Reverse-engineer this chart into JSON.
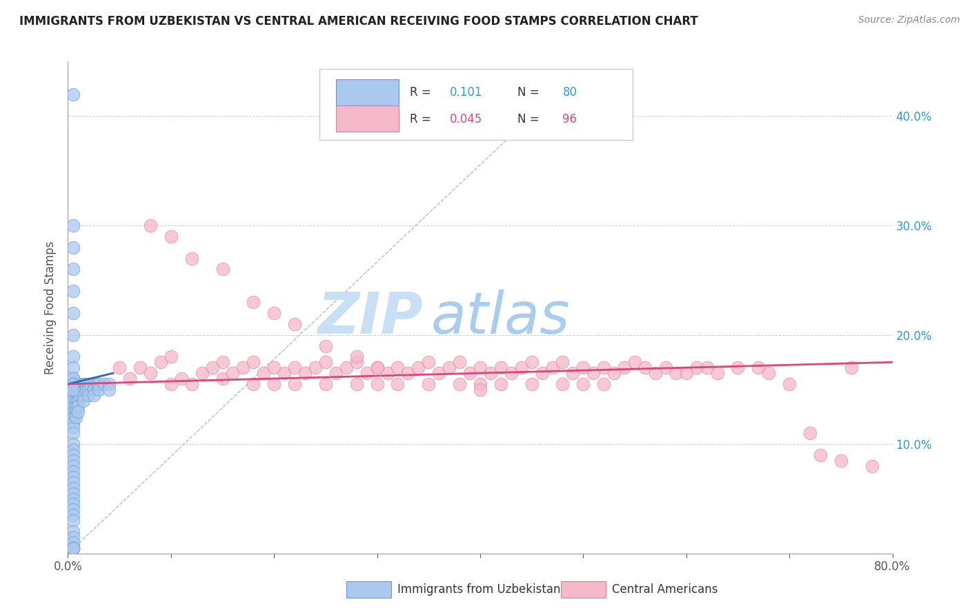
{
  "title": "IMMIGRANTS FROM UZBEKISTAN VS CENTRAL AMERICAN RECEIVING FOOD STAMPS CORRELATION CHART",
  "source": "Source: ZipAtlas.com",
  "ylabel": "Receiving Food Stamps",
  "xlim": [
    0.0,
    0.8
  ],
  "ylim": [
    0.0,
    0.45
  ],
  "legend_r1": "R =  0.101",
  "legend_n1": "N = 80",
  "legend_r2": "R =  0.045",
  "legend_n2": "N = 96",
  "blue_color": "#aac8f0",
  "blue_edge": "#6699cc",
  "pink_color": "#f5b8c8",
  "pink_edge": "#e87aa0",
  "blue_line_color": "#3366aa",
  "pink_line_color": "#dd4477",
  "diag_line_color": "#aabbdd",
  "watermark_color": "#ddeeff",
  "title_color": "#222222",
  "right_tick_color": "#3399cc",
  "blue_scatter_x": [
    0.005,
    0.005,
    0.005,
    0.005,
    0.005,
    0.005,
    0.005,
    0.005,
    0.005,
    0.005,
    0.005,
    0.005,
    0.005,
    0.005,
    0.005,
    0.005,
    0.005,
    0.005,
    0.005,
    0.005,
    0.005,
    0.005,
    0.005,
    0.005,
    0.005,
    0.008,
    0.008,
    0.008,
    0.008,
    0.008,
    0.008,
    0.008,
    0.01,
    0.01,
    0.01,
    0.01,
    0.01,
    0.01,
    0.012,
    0.012,
    0.012,
    0.015,
    0.015,
    0.015,
    0.015,
    0.018,
    0.018,
    0.02,
    0.02,
    0.02,
    0.022,
    0.025,
    0.025,
    0.025,
    0.028,
    0.03,
    0.03,
    0.035,
    0.04,
    0.04,
    0.005,
    0.005,
    0.005,
    0.005,
    0.005,
    0.005,
    0.005,
    0.005,
    0.005,
    0.005,
    0.005,
    0.005,
    0.005,
    0.005,
    0.005,
    0.005,
    0.005,
    0.005,
    0.005,
    0.005
  ],
  "blue_scatter_y": [
    0.42,
    0.155,
    0.145,
    0.14,
    0.135,
    0.13,
    0.125,
    0.12,
    0.115,
    0.11,
    0.1,
    0.095,
    0.09,
    0.085,
    0.08,
    0.075,
    0.07,
    0.065,
    0.06,
    0.055,
    0.05,
    0.045,
    0.04,
    0.035,
    0.03,
    0.155,
    0.15,
    0.145,
    0.14,
    0.135,
    0.13,
    0.125,
    0.155,
    0.15,
    0.145,
    0.14,
    0.135,
    0.13,
    0.155,
    0.15,
    0.145,
    0.155,
    0.15,
    0.145,
    0.14,
    0.155,
    0.15,
    0.155,
    0.15,
    0.145,
    0.155,
    0.155,
    0.15,
    0.145,
    0.155,
    0.155,
    0.15,
    0.155,
    0.155,
    0.15,
    0.3,
    0.28,
    0.26,
    0.24,
    0.22,
    0.2,
    0.18,
    0.17,
    0.16,
    0.16,
    0.155,
    0.155,
    0.15,
    0.02,
    0.015,
    0.01,
    0.005,
    0.005,
    0.005,
    0.005
  ],
  "pink_scatter_x": [
    0.05,
    0.06,
    0.07,
    0.08,
    0.09,
    0.1,
    0.1,
    0.11,
    0.12,
    0.13,
    0.14,
    0.15,
    0.15,
    0.16,
    0.17,
    0.18,
    0.18,
    0.19,
    0.2,
    0.2,
    0.21,
    0.22,
    0.22,
    0.23,
    0.24,
    0.25,
    0.25,
    0.26,
    0.27,
    0.28,
    0.28,
    0.29,
    0.3,
    0.3,
    0.31,
    0.32,
    0.32,
    0.33,
    0.34,
    0.35,
    0.35,
    0.36,
    0.37,
    0.38,
    0.38,
    0.39,
    0.4,
    0.4,
    0.41,
    0.42,
    0.42,
    0.43,
    0.44,
    0.45,
    0.45,
    0.46,
    0.47,
    0.48,
    0.48,
    0.49,
    0.5,
    0.5,
    0.51,
    0.52,
    0.52,
    0.53,
    0.54,
    0.55,
    0.56,
    0.57,
    0.58,
    0.59,
    0.6,
    0.61,
    0.62,
    0.63,
    0.65,
    0.67,
    0.68,
    0.7,
    0.72,
    0.73,
    0.75,
    0.76,
    0.78,
    0.08,
    0.1,
    0.12,
    0.15,
    0.18,
    0.2,
    0.22,
    0.25,
    0.28,
    0.3,
    0.4
  ],
  "pink_scatter_y": [
    0.17,
    0.16,
    0.17,
    0.165,
    0.175,
    0.18,
    0.155,
    0.16,
    0.155,
    0.165,
    0.17,
    0.175,
    0.16,
    0.165,
    0.17,
    0.175,
    0.155,
    0.165,
    0.17,
    0.155,
    0.165,
    0.17,
    0.155,
    0.165,
    0.17,
    0.175,
    0.155,
    0.165,
    0.17,
    0.175,
    0.155,
    0.165,
    0.17,
    0.155,
    0.165,
    0.17,
    0.155,
    0.165,
    0.17,
    0.175,
    0.155,
    0.165,
    0.17,
    0.175,
    0.155,
    0.165,
    0.17,
    0.155,
    0.165,
    0.17,
    0.155,
    0.165,
    0.17,
    0.175,
    0.155,
    0.165,
    0.17,
    0.175,
    0.155,
    0.165,
    0.17,
    0.155,
    0.165,
    0.17,
    0.155,
    0.165,
    0.17,
    0.175,
    0.17,
    0.165,
    0.17,
    0.165,
    0.165,
    0.17,
    0.17,
    0.165,
    0.17,
    0.17,
    0.165,
    0.155,
    0.11,
    0.09,
    0.085,
    0.17,
    0.08,
    0.3,
    0.29,
    0.27,
    0.26,
    0.23,
    0.22,
    0.21,
    0.19,
    0.18,
    0.17,
    0.15
  ],
  "blue_regline_x": [
    0.0,
    0.044
  ],
  "blue_regline_y": [
    0.155,
    0.165
  ],
  "pink_regline_x": [
    0.0,
    0.8
  ],
  "pink_regline_y": [
    0.155,
    0.175
  ],
  "diag_line_x": [
    0.0,
    0.45
  ],
  "diag_line_y": [
    0.0,
    0.4
  ]
}
